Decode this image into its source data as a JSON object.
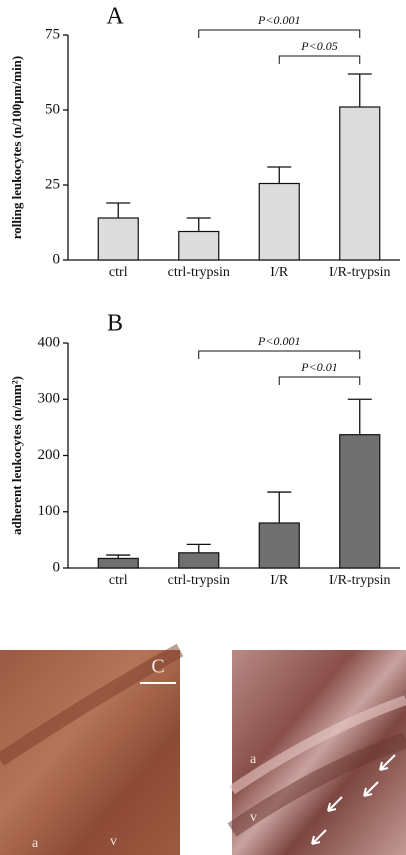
{
  "chart_data": [
    {
      "type": "bar",
      "title": "A",
      "y_label": "rolling leukocytes (n/100µm/min)",
      "categories": [
        "ctrl",
        "ctrl-trypsin",
        "I/R",
        "I/R-trypsin"
      ],
      "values": [
        14,
        9.5,
        25.5,
        51
      ],
      "errors": [
        5,
        4.5,
        5.5,
        11
      ],
      "color": "#dcdcdc",
      "ylim": [
        0,
        75
      ],
      "yticks": [
        0,
        25,
        50,
        75
      ],
      "annotations": [
        {
          "text": "P<0.001",
          "from": "ctrl-trypsin",
          "to": "I/R-trypsin"
        },
        {
          "text": "P<0.05",
          "from": "I/R",
          "to": "I/R-trypsin"
        }
      ]
    },
    {
      "type": "bar",
      "title": "B",
      "y_label": "adherent leukocytes (n/mm²)",
      "categories": [
        "ctrl",
        "ctrl-trypsin",
        "I/R",
        "I/R-trypsin"
      ],
      "values": [
        17,
        27,
        80,
        237
      ],
      "errors": [
        6,
        15,
        55,
        63
      ],
      "color": "#707070",
      "ylim": [
        0,
        400
      ],
      "yticks": [
        0,
        100,
        200,
        300,
        400
      ],
      "annotations": [
        {
          "text": "P<0.001",
          "from": "ctrl-trypsin",
          "to": "I/R-trypsin"
        },
        {
          "text": "P<0.01",
          "from": "I/R",
          "to": "I/R-trypsin"
        }
      ]
    }
  ],
  "images": {
    "left": {
      "panel": "C",
      "labels": [
        "a",
        "v"
      ]
    },
    "right": {
      "labels": [
        "a",
        "v"
      ]
    }
  }
}
